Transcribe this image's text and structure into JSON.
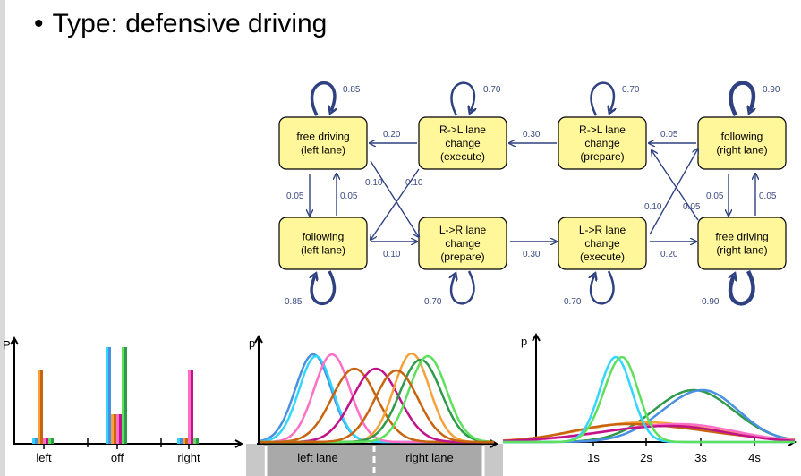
{
  "slide": {
    "bullet": "•",
    "title": "Type: defensive driving"
  },
  "colors": {
    "state_fill": "#fff79a",
    "arrow": "#2f4180",
    "cyan": "#33d6ff",
    "blue": "#4a90e2",
    "orange": "#f7a13b",
    "dark_orange": "#c8640f",
    "pink": "#ff6fc8",
    "magenta": "#c0138a",
    "green": "#5ee05e",
    "dark_green": "#2e9a4a"
  },
  "diagram": {
    "states": [
      {
        "id": "s1",
        "lines": [
          "free driving",
          "(left lane)"
        ]
      },
      {
        "id": "s2",
        "lines": [
          "R->L lane",
          "change",
          "(execute)"
        ]
      },
      {
        "id": "s3",
        "lines": [
          "R->L lane",
          "change",
          "(prepare)"
        ]
      },
      {
        "id": "s4",
        "lines": [
          "following",
          "(right lane)"
        ]
      },
      {
        "id": "s5",
        "lines": [
          "following",
          "(left lane)"
        ]
      },
      {
        "id": "s6",
        "lines": [
          "L->R lane",
          "change",
          "(prepare)"
        ]
      },
      {
        "id": "s7",
        "lines": [
          "L->R lane",
          "change",
          "(execute)"
        ]
      },
      {
        "id": "s8",
        "lines": [
          "free driving",
          "(right lane)"
        ]
      }
    ],
    "self_loops": [
      {
        "state": "s1",
        "prob": "0.85"
      },
      {
        "state": "s2",
        "prob": "0.70"
      },
      {
        "state": "s3",
        "prob": "0.70"
      },
      {
        "state": "s4",
        "prob": "0.90"
      },
      {
        "state": "s5",
        "prob": "0.85"
      },
      {
        "state": "s6",
        "prob": "0.70"
      },
      {
        "state": "s7",
        "prob": "0.70"
      },
      {
        "state": "s8",
        "prob": "0.90"
      }
    ],
    "transitions": [
      {
        "from": "s2",
        "to": "s1",
        "prob": "0.20"
      },
      {
        "from": "s3",
        "to": "s2",
        "prob": "0.30"
      },
      {
        "from": "s4",
        "to": "s3",
        "prob": "0.05"
      },
      {
        "from": "s5",
        "to": "s6",
        "prob": "0.10"
      },
      {
        "from": "s6",
        "to": "s7",
        "prob": "0.30"
      },
      {
        "from": "s7",
        "to": "s8",
        "prob": "0.20"
      },
      {
        "from": "s1",
        "to": "s5",
        "prob": "0.05"
      },
      {
        "from": "s5",
        "to": "s1",
        "prob": "0.05"
      },
      {
        "from": "s2",
        "to": "s5",
        "prob": "0.10"
      },
      {
        "from": "s1",
        "to": "s6",
        "prob": "0.10"
      },
      {
        "from": "s4",
        "to": "s8",
        "prob": "0.05"
      },
      {
        "from": "s8",
        "to": "s4",
        "prob": "0.05"
      },
      {
        "from": "s7",
        "to": "s4",
        "prob": "0.10"
      },
      {
        "from": "s8",
        "to": "s3",
        "prob": "0.05"
      }
    ]
  },
  "plots": {
    "bars": {
      "y_label": "P",
      "categories": [
        "left",
        "off",
        "right"
      ]
    },
    "lane": {
      "y_label": "p",
      "x_labels": [
        "left lane",
        "right lane"
      ]
    },
    "time": {
      "y_label": "p",
      "x_ticks": [
        "1s",
        "2s",
        "3s",
        "4s"
      ]
    }
  }
}
